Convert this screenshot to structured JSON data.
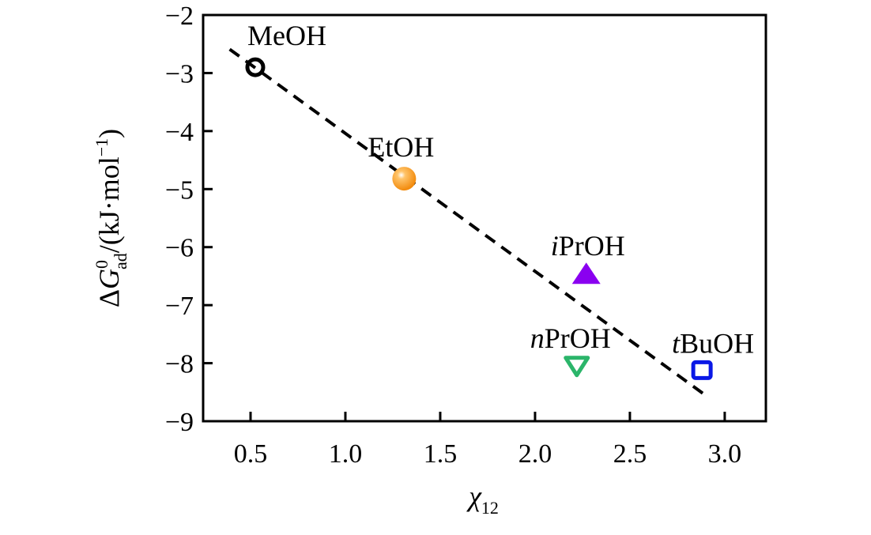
{
  "chart_data": {
    "type": "scatter",
    "title": "",
    "xlabel": {
      "main": "χ",
      "sub": "12"
    },
    "ylabel": {
      "delta": "Δ",
      "var": "G",
      "sup": "0",
      "sub": "ad",
      "unit_pre": "/(kJ·mol",
      "unit_sup": "−1",
      "unit_post": ")"
    },
    "xlim": [
      0.25,
      3.217
    ],
    "ylim": [
      -9,
      -2
    ],
    "xticks": [
      0.5,
      1.0,
      1.5,
      2.0,
      2.5,
      3.0
    ],
    "xtick_labels": [
      "0.5",
      "1.0",
      "1.5",
      "2.0",
      "2.5",
      "3.0"
    ],
    "yticks": [
      -2,
      -3,
      -4,
      -5,
      -6,
      -7,
      -8,
      -9
    ],
    "ytick_labels": [
      "−2",
      "−3",
      "−4",
      "−5",
      "−6",
      "−7",
      "−8",
      "−9"
    ],
    "grid": false,
    "points": [
      {
        "prefix": "",
        "label": "MeOH",
        "x": 0.525,
        "y": -2.9,
        "marker": "open-circle",
        "color": "#000000"
      },
      {
        "prefix": "",
        "label": "EtOH",
        "x": 1.31,
        "y": -4.82,
        "marker": "filled-sphere",
        "color": "#f28a0c"
      },
      {
        "prefix": "i",
        "label": "PrOH",
        "x": 2.27,
        "y": -6.47,
        "marker": "filled-triangle-up",
        "color": "#8a00f0"
      },
      {
        "prefix": "n",
        "label": "PrOH",
        "x": 2.22,
        "y": -8.03,
        "marker": "open-triangle-down",
        "color": "#2bb56a"
      },
      {
        "prefix": "t",
        "label": "BuOH",
        "x": 2.88,
        "y": -8.12,
        "marker": "open-square",
        "color": "#0a18e6"
      }
    ],
    "fit_line": {
      "style": "dashed",
      "color": "#000000",
      "x": [
        0.39,
        2.91
      ],
      "y": [
        -2.59,
        -8.58
      ]
    }
  }
}
